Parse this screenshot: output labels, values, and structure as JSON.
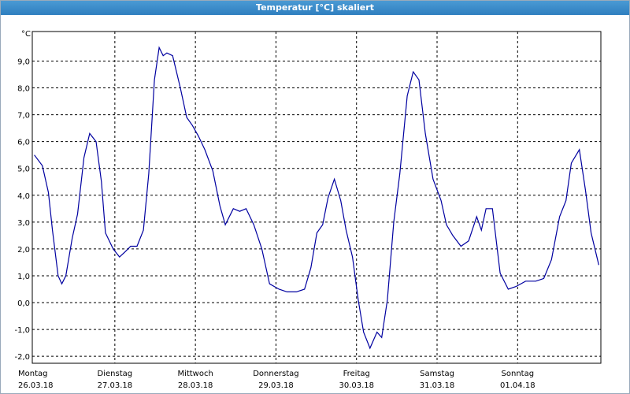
{
  "chart_data": {
    "type": "line",
    "title": "Temperatur [°C] skaliert",
    "y_unit": "°C",
    "color": "#0000a0",
    "grid": true,
    "xlim": [
      -0.6,
      168.8
    ],
    "ylim": [
      -2.26,
      10.1
    ],
    "yticks": [
      {
        "value": -2,
        "label": "-2,0"
      },
      {
        "value": -1,
        "label": "-1,0"
      },
      {
        "value": 0,
        "label": "0,0"
      },
      {
        "value": 1,
        "label": "1,0"
      },
      {
        "value": 2,
        "label": "2,0"
      },
      {
        "value": 3,
        "label": "3,0"
      },
      {
        "value": 4,
        "label": "4,0"
      },
      {
        "value": 5,
        "label": "5,0"
      },
      {
        "value": 6,
        "label": "6,0"
      },
      {
        "value": 7,
        "label": "7,0"
      },
      {
        "value": 8,
        "label": "8,0"
      },
      {
        "value": 9,
        "label": "9,0"
      }
    ],
    "xticks": [
      {
        "value": 0,
        "label": "Montag"
      },
      {
        "value": 24,
        "label": "Dienstag"
      },
      {
        "value": 48,
        "label": "Mittwoch"
      },
      {
        "value": 72,
        "label": "Donnerstag"
      },
      {
        "value": 96,
        "label": "Freitag"
      },
      {
        "value": 120,
        "label": "Samstag"
      },
      {
        "value": 144,
        "label": "Sonntag"
      }
    ],
    "xtick_dates": [
      "26.03.18",
      "27.03.18",
      "28.03.18",
      "29.03.18",
      "30.03.18",
      "31.03.18",
      "01.04.18"
    ],
    "x": [
      0,
      2.4,
      4.2,
      5.4,
      7.1,
      8.2,
      9.4,
      11.3,
      12.9,
      14.8,
      16.5,
      18.4,
      20,
      21.2,
      23.5,
      25.4,
      27.1,
      28.7,
      30.6,
      32.5,
      34.1,
      35.8,
      37.2,
      38.4,
      39.5,
      41.2,
      43.5,
      45.4,
      47.1,
      48.9,
      50.8,
      53.2,
      55.3,
      56.9,
      59.3,
      61.2,
      63.1,
      65.4,
      67.8,
      70.1,
      72.9,
      75.3,
      78.1,
      80.5,
      82.4,
      84.2,
      85.9,
      87.5,
      89.4,
      91.3,
      92.9,
      94.8,
      96.5,
      98.1,
      100,
      102.1,
      103.5,
      105.2,
      107.1,
      108.9,
      111.1,
      112.9,
      114.6,
      116.5,
      118.8,
      121.2,
      122.8,
      124.7,
      127.1,
      129.4,
      131.8,
      133.2,
      134.6,
      136.5,
      138.8,
      141.2,
      143.5,
      146.4,
      149.4,
      151.8,
      154.1,
      156.5,
      158.4,
      160,
      162.4,
      164.2,
      165.9,
      168.2
    ],
    "values": [
      5.5,
      5.1,
      4.1,
      2.7,
      1.0,
      0.7,
      1.0,
      2.4,
      3.3,
      5.4,
      6.3,
      6.0,
      4.5,
      2.6,
      2.0,
      1.7,
      1.9,
      2.1,
      2.1,
      2.7,
      4.8,
      8.3,
      9.5,
      9.2,
      9.3,
      9.2,
      8.0,
      6.9,
      6.6,
      6.2,
      5.7,
      4.9,
      3.6,
      2.9,
      3.5,
      3.4,
      3.5,
      2.9,
      2.0,
      0.7,
      0.5,
      0.4,
      0.4,
      0.5,
      1.3,
      2.6,
      2.9,
      3.9,
      4.6,
      3.8,
      2.7,
      1.7,
      0.1,
      -1.1,
      -1.7,
      -1.1,
      -1.3,
      0.1,
      3.0,
      4.8,
      7.7,
      8.6,
      8.3,
      6.3,
      4.6,
      3.8,
      2.9,
      2.5,
      2.1,
      2.3,
      3.2,
      2.7,
      3.5,
      3.5,
      1.1,
      0.5,
      0.6,
      0.8,
      0.8,
      0.9,
      1.6,
      3.2,
      3.8,
      5.2,
      5.7,
      4.2,
      2.6,
      1.4
    ]
  }
}
